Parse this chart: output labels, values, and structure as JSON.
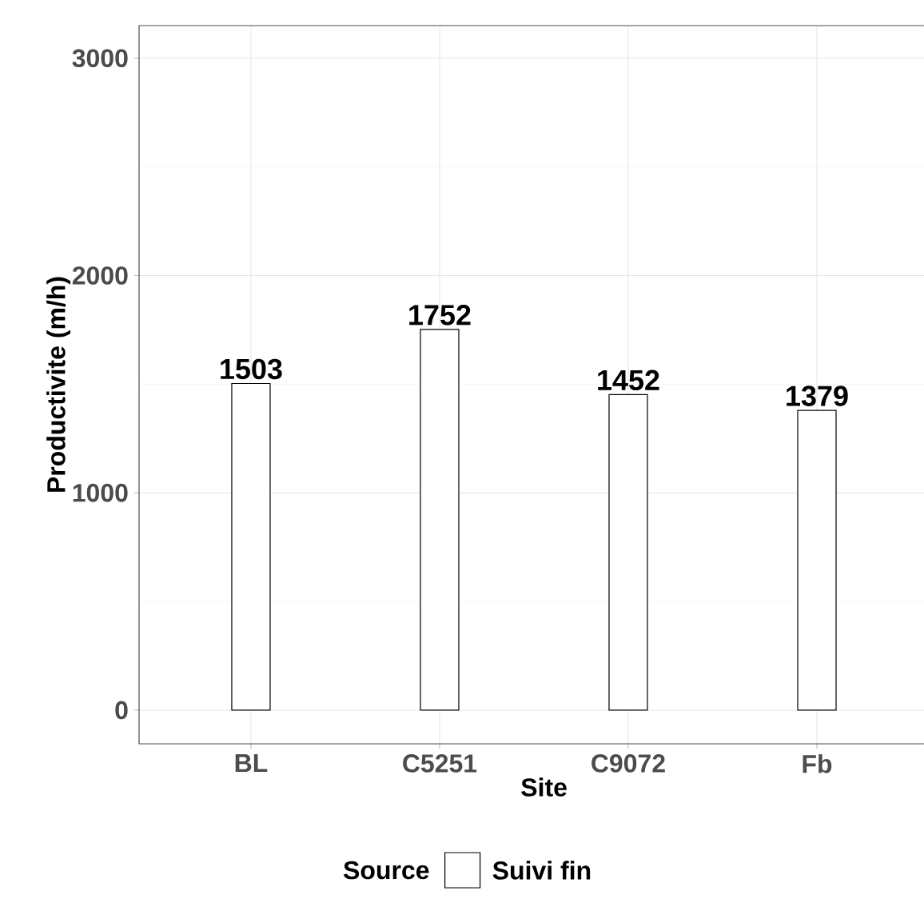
{
  "chart_data": {
    "type": "bar",
    "xlabel": "Site",
    "ylabel": "Productivite (m/h)",
    "legend_title": "Source",
    "categories": [
      "BL",
      "C5251",
      "C9072",
      "Fb"
    ],
    "series": [
      {
        "name": "Suivi fin",
        "color": "#ffffff",
        "values": [
          1503,
          1752,
          1452,
          1379
        ]
      }
    ],
    "ylim": [
      -155,
      3150
    ],
    "yticks": [
      0,
      1000,
      2000,
      3000
    ],
    "grid": true,
    "legend": "bottom",
    "data_labels": true
  }
}
